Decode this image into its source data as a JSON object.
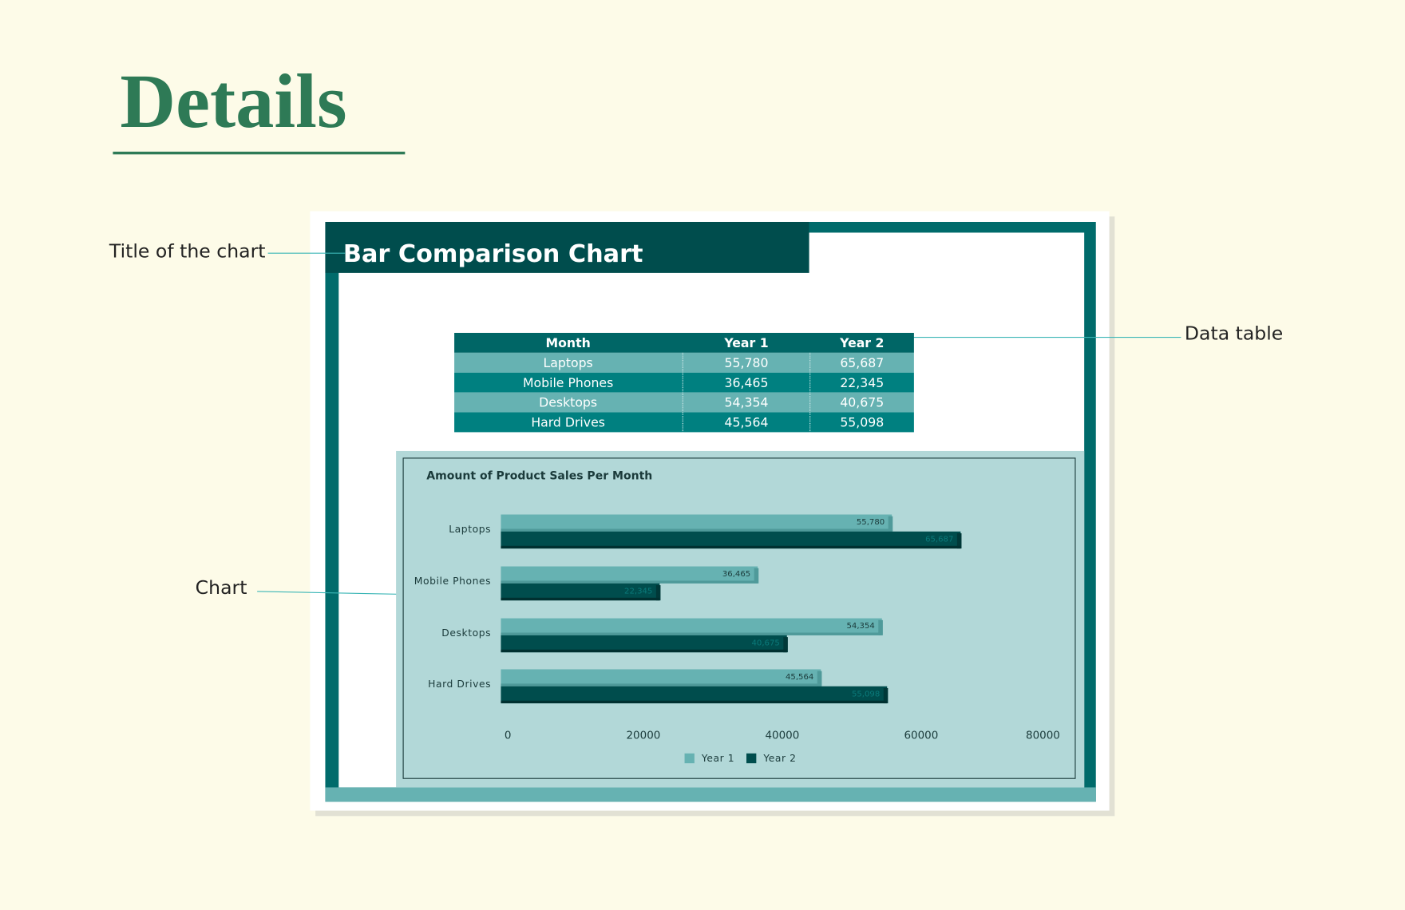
{
  "header": {
    "title": "Details"
  },
  "annotations": {
    "title_label": "Title of the chart",
    "table_label": "Data table",
    "chart_label": "Chart"
  },
  "sheet": {
    "title": "Bar Comparison Chart"
  },
  "table": {
    "header": [
      "Month",
      "Year 1",
      "Year 2"
    ],
    "rows": [
      [
        "Laptops",
        "55,780",
        "65,687"
      ],
      [
        "Mobile Phones",
        "36,465",
        "22,345"
      ],
      [
        "Desktops",
        "54,354",
        "40,675"
      ],
      [
        "Hard Drives",
        "45,564",
        "55,098"
      ]
    ]
  },
  "chart_data": {
    "type": "bar",
    "orientation": "horizontal",
    "title": "Amount of Product Sales Per Month",
    "categories": [
      "Laptops",
      "Mobile Phones",
      "Desktops",
      "Hard Drives"
    ],
    "series": [
      {
        "name": "Year 1",
        "color": "#66b2b2",
        "values": [
          55780,
          36465,
          54354,
          45564
        ],
        "value_labels": [
          "55,780",
          "36,465",
          "54,354",
          "45,564"
        ]
      },
      {
        "name": "Year 2",
        "color": "#004d4d",
        "values": [
          65687,
          22345,
          40675,
          55098
        ],
        "value_labels": [
          "65,687",
          "22,345",
          "40,675",
          "55,098"
        ]
      }
    ],
    "xlim": [
      0,
      80000
    ],
    "xticks": [
      0,
      20000,
      40000,
      60000,
      80000
    ],
    "legend": "bottom",
    "grid": false
  }
}
